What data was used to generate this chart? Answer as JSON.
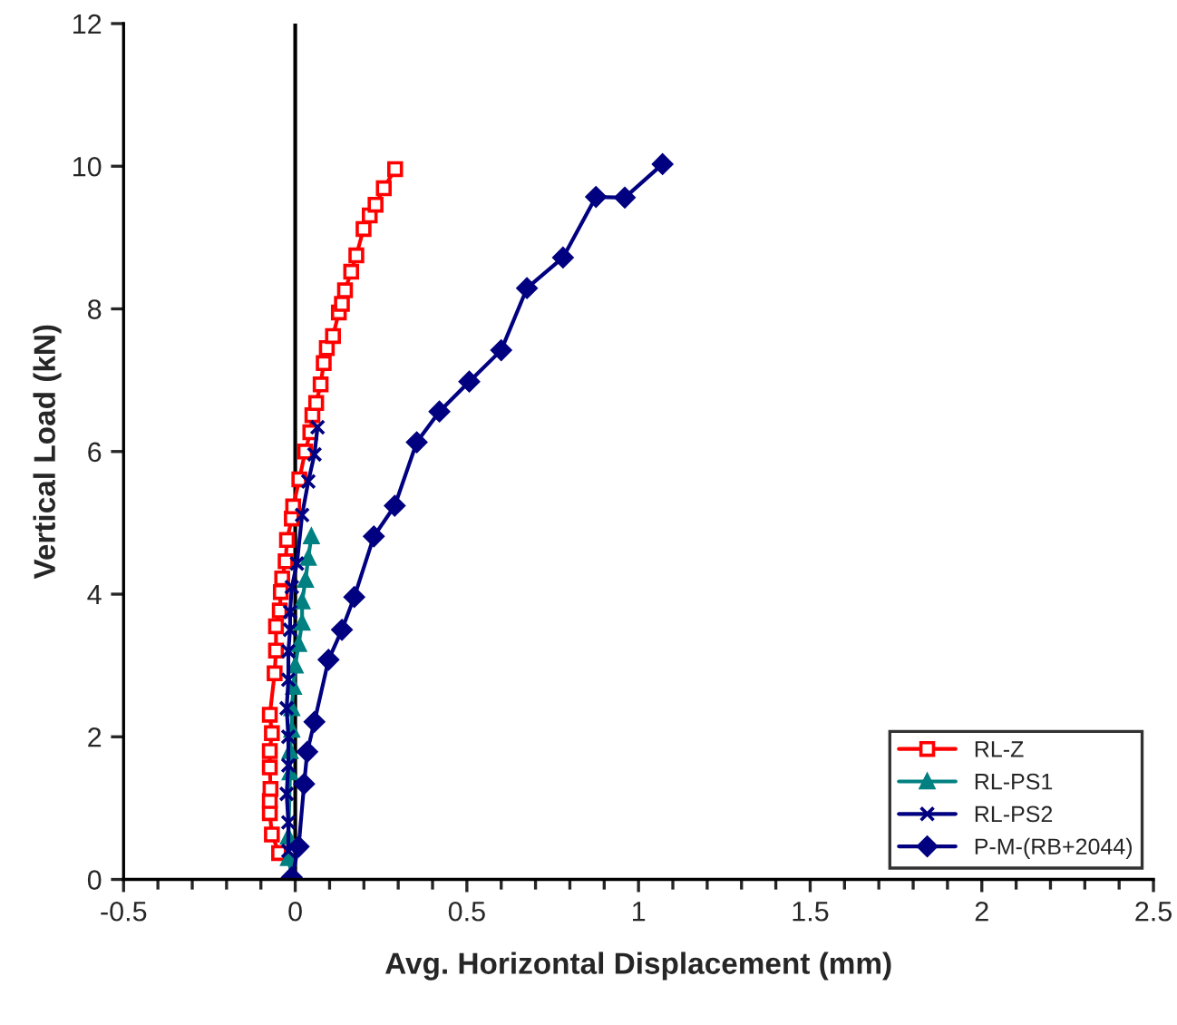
{
  "chart_data": {
    "type": "line",
    "xlabel": "Avg. Horizontal Displacement (mm)",
    "ylabel": "Vertical Load (kN)",
    "xlim": [
      -0.5,
      2.5
    ],
    "xticks": [
      -0.5,
      0,
      0.5,
      1,
      1.5,
      2,
      2.5
    ],
    "ylim": [
      0,
      12
    ],
    "yticks": [
      0,
      2,
      4,
      6,
      8,
      10,
      12
    ],
    "grid": false,
    "legend": "bottom right",
    "ref_lines": [
      {
        "axis": "x",
        "value": 0,
        "color": "#000000"
      }
    ],
    "series": [
      {
        "name": "RL-Z",
        "color": "#ff0000",
        "marker": "square",
        "x": [
          -0.047,
          -0.068,
          -0.074,
          -0.074,
          -0.072,
          -0.074,
          -0.074,
          -0.068,
          -0.074,
          -0.06,
          -0.056,
          -0.056,
          -0.045,
          -0.042,
          -0.038,
          -0.028,
          -0.024,
          -0.01,
          -0.006,
          0.012,
          0.029,
          0.044,
          0.05,
          0.061,
          0.074,
          0.083,
          0.092,
          0.11,
          0.127,
          0.136,
          0.145,
          0.163,
          0.178,
          0.199,
          0.217,
          0.234,
          0.258,
          0.291
        ],
        "values": [
          0.37,
          0.63,
          0.93,
          1.1,
          1.27,
          1.57,
          1.8,
          2.05,
          2.31,
          2.89,
          3.21,
          3.55,
          3.77,
          4.03,
          4.22,
          4.46,
          4.76,
          5.06,
          5.23,
          5.61,
          6.0,
          6.27,
          6.51,
          6.68,
          6.94,
          7.24,
          7.45,
          7.62,
          7.95,
          8.07,
          8.26,
          8.52,
          8.75,
          9.12,
          9.31,
          9.46,
          9.69,
          9.96
        ]
      },
      {
        "name": "RL-PS1",
        "color": "#008080",
        "marker": "triangle",
        "x": [
          -0.01,
          -0.02,
          -0.02,
          -0.015,
          -0.015,
          -0.01,
          -0.01,
          -0.005,
          0.0,
          0.01,
          0.02,
          0.02,
          0.03,
          0.038,
          0.047
        ],
        "values": [
          0.05,
          0.3,
          0.6,
          1.5,
          1.8,
          2.1,
          2.4,
          2.7,
          3.0,
          3.3,
          3.6,
          3.9,
          4.2,
          4.51,
          4.81
        ]
      },
      {
        "name": "RL-PS2",
        "color": "#000080",
        "marker": "cross",
        "x": [
          -0.02,
          -0.02,
          -0.025,
          -0.02,
          -0.02,
          -0.025,
          -0.02,
          -0.02,
          -0.015,
          -0.015,
          -0.01,
          0.005,
          0.02,
          0.038,
          0.056,
          0.065
        ],
        "values": [
          0.4,
          0.8,
          1.2,
          1.6,
          2.0,
          2.4,
          2.8,
          3.2,
          3.5,
          3.75,
          4.1,
          4.43,
          5.11,
          5.58,
          5.96,
          6.34
        ]
      },
      {
        "name": "P-M-(RB+2044)",
        "color": "#000080",
        "marker": "diamond",
        "x": [
          -0.01,
          0.01,
          0.026,
          0.035,
          0.056,
          0.097,
          0.136,
          0.172,
          0.229,
          0.29,
          0.354,
          0.42,
          0.507,
          0.6,
          0.675,
          0.78,
          0.876,
          0.96,
          1.07
        ],
        "values": [
          0.03,
          0.46,
          1.34,
          1.79,
          2.21,
          3.08,
          3.5,
          3.96,
          4.81,
          5.24,
          6.13,
          6.56,
          6.98,
          7.42,
          8.29,
          8.72,
          9.57,
          9.56,
          10.03
        ]
      }
    ]
  }
}
